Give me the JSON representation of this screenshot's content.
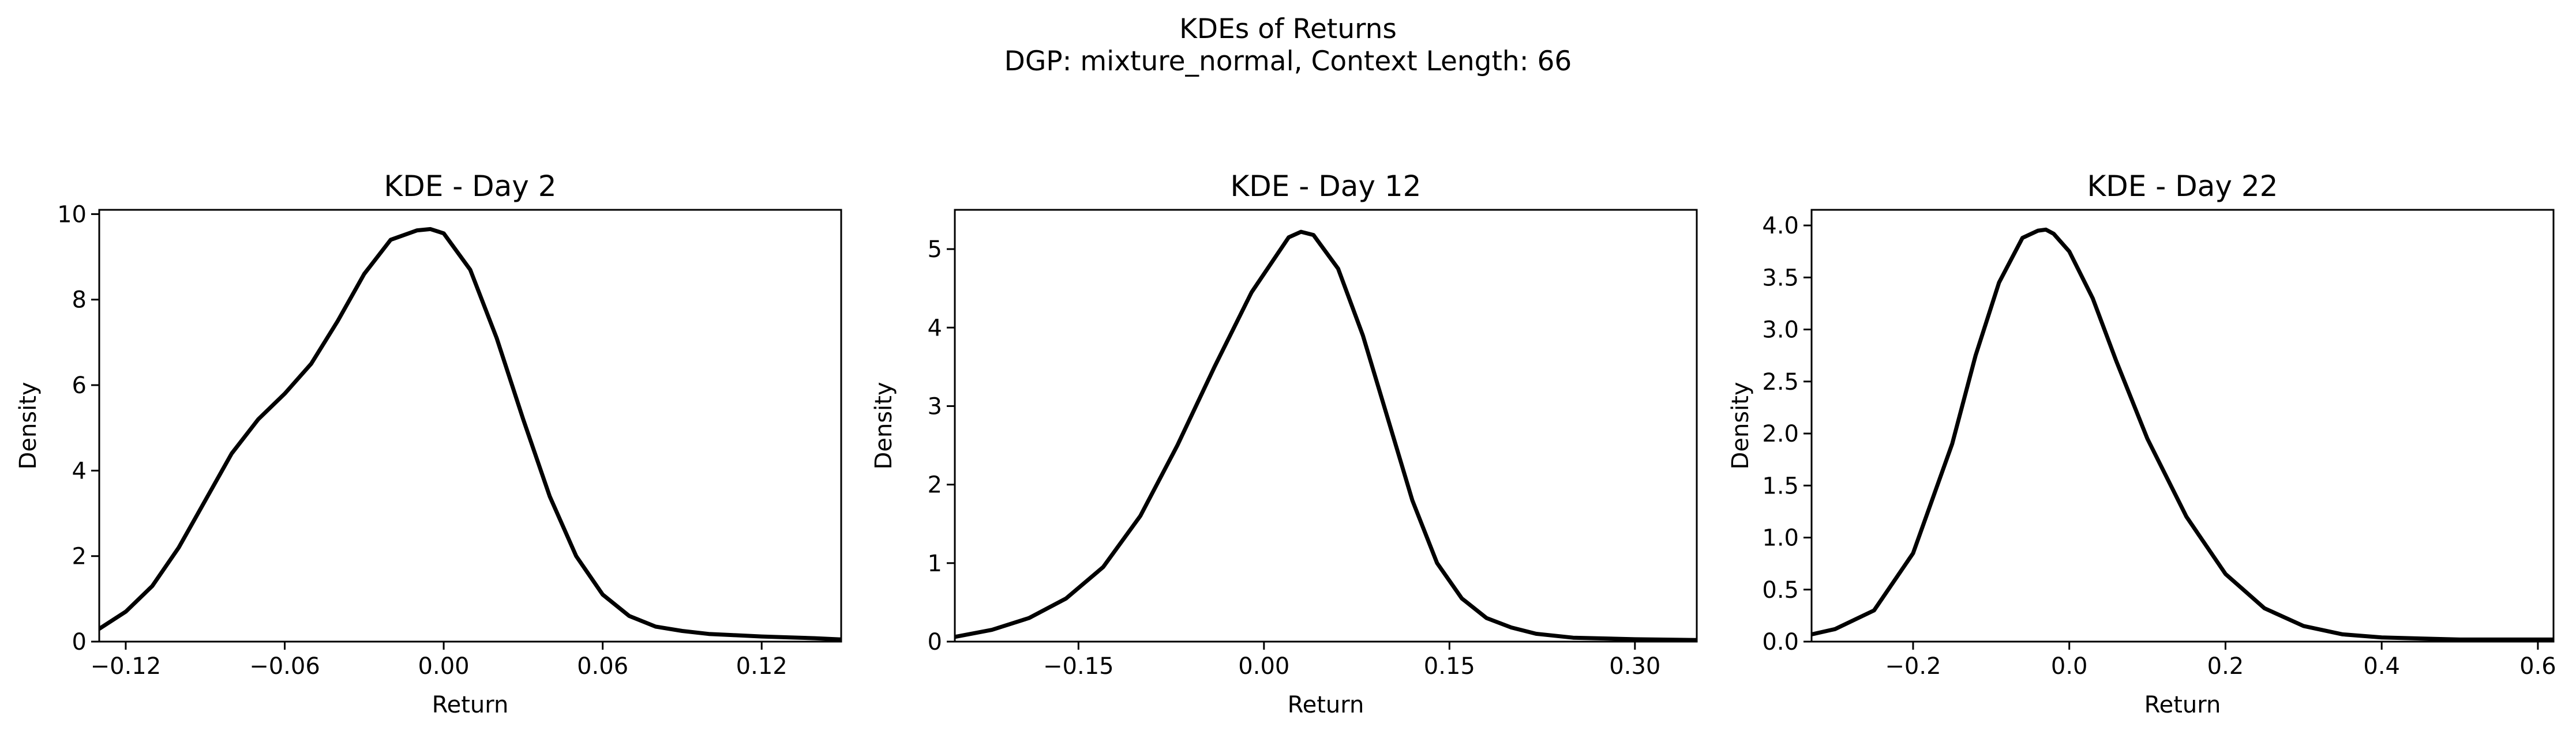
{
  "figure": {
    "title": "KDEs of Returns",
    "subtitle": "DGP: mixture_normal, Context Length: 66"
  },
  "chart_data": [
    {
      "type": "line",
      "title": "KDE - Day 2",
      "xlabel": "Return",
      "ylabel": "Density",
      "xlim": [
        -0.13,
        0.15
      ],
      "ylim": [
        0,
        10.1
      ],
      "xticks": [
        -0.12,
        -0.06,
        0.0,
        0.06,
        0.12
      ],
      "xtick_labels": [
        "−0.12",
        "−0.06",
        "0.00",
        "0.06",
        "0.12"
      ],
      "yticks": [
        0,
        2,
        4,
        6,
        8,
        10
      ],
      "ytick_labels": [
        "0",
        "2",
        "4",
        "6",
        "8",
        "10"
      ],
      "grid": false,
      "line_color": "#000000",
      "series": [
        {
          "x": [
            -0.13,
            -0.12,
            -0.11,
            -0.1,
            -0.09,
            -0.08,
            -0.07,
            -0.06,
            -0.05,
            -0.04,
            -0.03,
            -0.02,
            -0.01,
            -0.005,
            0.0,
            0.01,
            0.02,
            0.03,
            0.04,
            0.05,
            0.06,
            0.07,
            0.08,
            0.09,
            0.1,
            0.11,
            0.12,
            0.13,
            0.14,
            0.15
          ],
          "y": [
            0.3,
            0.7,
            1.3,
            2.2,
            3.3,
            4.4,
            5.2,
            5.8,
            6.5,
            7.5,
            8.6,
            9.4,
            9.62,
            9.65,
            9.55,
            8.7,
            7.1,
            5.2,
            3.4,
            2.0,
            1.1,
            0.6,
            0.35,
            0.25,
            0.18,
            0.15,
            0.12,
            0.1,
            0.08,
            0.05
          ]
        }
      ]
    },
    {
      "type": "line",
      "title": "KDE - Day 12",
      "xlabel": "Return",
      "ylabel": "Density",
      "xlim": [
        -0.25,
        0.35
      ],
      "ylim": [
        0,
        5.5
      ],
      "xticks": [
        -0.15,
        0.0,
        0.15,
        0.3
      ],
      "xtick_labels": [
        "−0.15",
        "0.00",
        "0.15",
        "0.30"
      ],
      "yticks": [
        0,
        1,
        2,
        3,
        4,
        5
      ],
      "ytick_labels": [
        "0",
        "1",
        "2",
        "3",
        "4",
        "5"
      ],
      "grid": false,
      "line_color": "#000000",
      "series": [
        {
          "x": [
            -0.25,
            -0.22,
            -0.19,
            -0.16,
            -0.13,
            -0.1,
            -0.07,
            -0.04,
            -0.01,
            0.02,
            0.03,
            0.04,
            0.06,
            0.08,
            0.1,
            0.12,
            0.14,
            0.16,
            0.18,
            0.2,
            0.22,
            0.25,
            0.3,
            0.35
          ],
          "y": [
            0.06,
            0.15,
            0.3,
            0.55,
            0.95,
            1.6,
            2.5,
            3.5,
            4.45,
            5.15,
            5.22,
            5.18,
            4.75,
            3.9,
            2.85,
            1.8,
            1.0,
            0.55,
            0.3,
            0.18,
            0.1,
            0.05,
            0.03,
            0.02
          ]
        }
      ]
    },
    {
      "type": "line",
      "title": "KDE - Day 22",
      "xlabel": "Return",
      "ylabel": "Density",
      "xlim": [
        -0.33,
        0.62
      ],
      "ylim": [
        0,
        4.15
      ],
      "xticks": [
        -0.2,
        0.0,
        0.2,
        0.4,
        0.6
      ],
      "xtick_labels": [
        "−0.2",
        "0.0",
        "0.2",
        "0.4",
        "0.6"
      ],
      "yticks": [
        0.0,
        0.5,
        1.0,
        1.5,
        2.0,
        2.5,
        3.0,
        3.5,
        4.0
      ],
      "ytick_labels": [
        "0.0",
        "0.5",
        "1.0",
        "1.5",
        "2.0",
        "2.5",
        "3.0",
        "3.5",
        "4.0"
      ],
      "grid": false,
      "line_color": "#000000",
      "series": [
        {
          "x": [
            -0.33,
            -0.3,
            -0.25,
            -0.2,
            -0.15,
            -0.12,
            -0.09,
            -0.06,
            -0.04,
            -0.03,
            -0.02,
            0.0,
            0.03,
            0.06,
            0.1,
            0.15,
            0.2,
            0.25,
            0.3,
            0.35,
            0.4,
            0.5,
            0.62
          ],
          "y": [
            0.07,
            0.12,
            0.3,
            0.85,
            1.9,
            2.75,
            3.45,
            3.88,
            3.95,
            3.96,
            3.92,
            3.75,
            3.3,
            2.7,
            1.95,
            1.2,
            0.65,
            0.32,
            0.15,
            0.07,
            0.04,
            0.02,
            0.02
          ]
        }
      ]
    }
  ]
}
